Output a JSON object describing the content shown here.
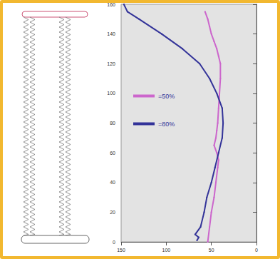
{
  "chart_data": {
    "type": "line",
    "series": [
      {
        "name": "=50%",
        "color": "#cc66cc",
        "x": [
          54,
          52,
          50,
          47,
          45,
          43,
          42,
          44,
          47,
          45,
          44,
          43,
          42,
          41,
          40,
          40,
          42,
          44,
          47,
          50,
          52,
          54,
          57
        ],
        "values": [
          0,
          10,
          20,
          30,
          40,
          50,
          55,
          60,
          65,
          70,
          75,
          80,
          90,
          100,
          110,
          120,
          125,
          130,
          135,
          140,
          145,
          150,
          155
        ]
      },
      {
        "name": "=80%",
        "color": "#333399",
        "x": [
          66,
          64,
          68,
          62,
          58,
          55,
          50,
          46,
          42,
          38,
          37,
          38,
          44,
          52,
          63,
          82,
          105,
          130,
          143,
          147
        ],
        "values": [
          1,
          3,
          5,
          10,
          20,
          30,
          40,
          50,
          60,
          70,
          80,
          90,
          100,
          110,
          120,
          130,
          140,
          150,
          155,
          160
        ]
      }
    ],
    "xlim": [
      150,
      0
    ],
    "xticks": [
      150,
      100,
      50,
      0
    ],
    "ylim": [
      0,
      160
    ],
    "yticks": [
      0,
      20,
      40,
      60,
      80,
      100,
      120,
      140,
      160
    ],
    "grid": false,
    "legend": "left",
    "marker": "circle"
  }
}
